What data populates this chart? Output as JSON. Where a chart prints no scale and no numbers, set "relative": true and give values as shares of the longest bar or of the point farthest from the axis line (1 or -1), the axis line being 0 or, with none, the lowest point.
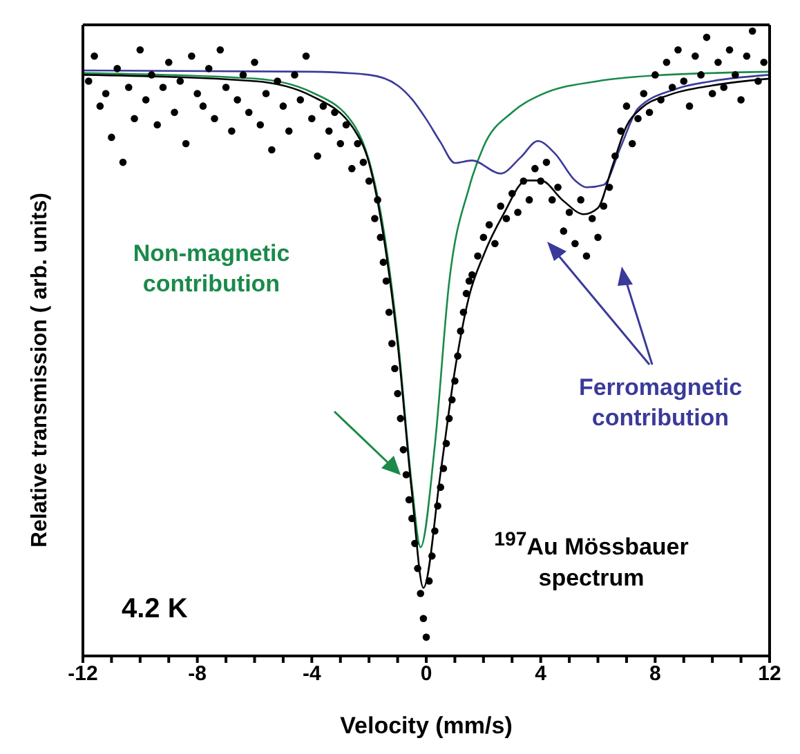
{
  "chart_data": {
    "type": "scatter",
    "relative": true,
    "xlabel": "Velocity (mm/s)",
    "ylabel": "Relative transmission ( arb. units)",
    "xlim": [
      -12,
      12
    ],
    "xticks": [
      -12,
      {
        "value": -11,
        "label": null
      },
      {
        "value": -10,
        "label": null
      },
      {
        "value": -9,
        "label": null
      },
      -8,
      {
        "value": -7,
        "label": null
      },
      {
        "value": -6,
        "label": null
      },
      {
        "value": -5,
        "label": null
      },
      -4,
      {
        "value": -3,
        "label": null
      },
      {
        "value": -2,
        "label": null
      },
      {
        "value": -1,
        "label": null
      },
      0,
      {
        "value": 1,
        "label": null
      },
      {
        "value": 2,
        "label": null
      },
      {
        "value": 3,
        "label": null
      },
      4,
      {
        "value": 5,
        "label": null
      },
      {
        "value": 6,
        "label": null
      },
      {
        "value": 7,
        "label": null
      },
      8,
      {
        "value": 9,
        "label": null
      },
      {
        "value": 10,
        "label": null
      },
      {
        "value": 11,
        "label": null
      },
      12
    ],
    "tick_labels": "x",
    "line_style": "solid",
    "annotations": [
      "4.2 K",
      "$^{197}$Au Mössbauer spectrum"
    ],
    "series": [
      {
        "color": "#000000",
        "marker": "circle",
        "x": [
          -11.8,
          -11.6,
          -11.4,
          -11.2,
          -11.0,
          -10.8,
          -10.6,
          -10.4,
          -10.2,
          -10.0,
          -9.8,
          -9.6,
          -9.4,
          -9.2,
          -9.0,
          -8.8,
          -8.6,
          -8.4,
          -8.2,
          -8.0,
          -7.8,
          -7.6,
          -7.4,
          -7.2,
          -7.0,
          -6.8,
          -6.6,
          -6.4,
          -6.2,
          -6.0,
          -5.8,
          -5.6,
          -5.4,
          -5.2,
          -5.0,
          -4.8,
          -4.6,
          -4.4,
          -4.2,
          -4.0,
          -3.8,
          -3.6,
          -3.4,
          -3.2,
          -3.0,
          -2.8,
          -2.6,
          -2.4,
          -2.2,
          -2.0,
          -1.8,
          -1.7,
          -1.6,
          -1.5,
          -1.4,
          -1.3,
          -1.2,
          -1.1,
          -1.0,
          -0.9,
          -0.8,
          -0.7,
          -0.6,
          -0.5,
          -0.4,
          -0.3,
          -0.2,
          -0.1,
          0.0,
          0.1,
          0.2,
          0.3,
          0.4,
          0.5,
          0.6,
          0.7,
          0.8,
          0.9,
          1.0,
          1.1,
          1.2,
          1.3,
          1.4,
          1.5,
          1.6,
          1.8,
          2.0,
          2.2,
          2.4,
          2.6,
          2.8,
          3.0,
          3.2,
          3.4,
          3.6,
          3.8,
          4.0,
          4.2,
          4.4,
          4.6,
          4.8,
          5.0,
          5.2,
          5.4,
          5.6,
          5.8,
          6.0,
          6.2,
          6.4,
          6.6,
          6.8,
          7.0,
          7.2,
          7.4,
          7.6,
          7.8,
          8.0,
          8.2,
          8.4,
          8.6,
          8.8,
          9.0,
          9.2,
          9.4,
          9.6,
          9.8,
          10.0,
          10.2,
          10.4,
          10.6,
          10.8,
          11.0,
          11.2,
          11.4,
          11.6,
          11.8
        ],
        "values": [
          0.92,
          0.96,
          0.88,
          0.9,
          0.83,
          0.94,
          0.79,
          0.91,
          0.86,
          0.97,
          0.89,
          0.93,
          0.85,
          0.91,
          0.95,
          0.87,
          0.92,
          0.82,
          0.96,
          0.9,
          0.88,
          0.94,
          0.86,
          0.97,
          0.91,
          0.84,
          0.89,
          0.93,
          0.87,
          0.95,
          0.85,
          0.9,
          0.81,
          0.92,
          0.88,
          0.84,
          0.93,
          0.89,
          0.96,
          0.86,
          0.8,
          0.88,
          0.84,
          0.87,
          0.82,
          0.85,
          0.78,
          0.82,
          0.79,
          0.76,
          0.7,
          0.73,
          0.67,
          0.63,
          0.6,
          0.55,
          0.5,
          0.46,
          0.42,
          0.38,
          0.33,
          0.29,
          0.25,
          0.22,
          0.18,
          0.14,
          0.1,
          0.06,
          0.03,
          0.12,
          0.16,
          0.2,
          0.24,
          0.27,
          0.3,
          0.34,
          0.38,
          0.41,
          0.44,
          0.48,
          0.52,
          0.55,
          0.58,
          0.6,
          0.61,
          0.64,
          0.67,
          0.69,
          0.66,
          0.72,
          0.7,
          0.74,
          0.71,
          0.76,
          0.73,
          0.78,
          0.76,
          0.79,
          0.73,
          0.75,
          0.68,
          0.71,
          0.66,
          0.73,
          0.64,
          0.7,
          0.67,
          0.72,
          0.75,
          0.8,
          0.84,
          0.88,
          0.82,
          0.86,
          0.9,
          0.87,
          0.93,
          0.89,
          0.95,
          0.91,
          0.97,
          0.92,
          0.88,
          0.96,
          0.93,
          0.99,
          0.9,
          0.95,
          0.91,
          0.97,
          0.93,
          0.89,
          0.96,
          1.0,
          0.92,
          0.95
        ]
      },
      {
        "type": "line",
        "name": "Non-magnetic contribution",
        "color": "#1a8a4a",
        "x": [
          -12,
          -6,
          -4,
          -2.5,
          -2,
          -1.5,
          -1,
          -0.5,
          -0.2,
          0.3,
          0.8,
          1.5,
          2,
          3,
          4,
          6,
          8,
          12
        ],
        "values": [
          0.933,
          0.924,
          0.902,
          0.848,
          0.793,
          0.685,
          0.511,
          0.272,
          0.174,
          0.337,
          0.598,
          0.75,
          0.815,
          0.87,
          0.898,
          0.92,
          0.929,
          0.935
        ]
      },
      {
        "type": "line",
        "name": "Ferromagnetic contribution",
        "color": "#3a3a9a",
        "x": [
          -12,
          -4,
          -2,
          -1,
          -0.5,
          0,
          0.5,
          1,
          1.6,
          2.6,
          3.3,
          3.9,
          4.5,
          5.2,
          5.6,
          6.2,
          6.8,
          7.4,
          8.7,
          10,
          12
        ],
        "values": [
          0.937,
          0.935,
          0.93,
          0.913,
          0.891,
          0.859,
          0.822,
          0.789,
          0.793,
          0.772,
          0.798,
          0.824,
          0.804,
          0.761,
          0.75,
          0.754,
          0.815,
          0.876,
          0.907,
          0.92,
          0.93
        ]
      },
      {
        "type": "line",
        "color": "#000000",
        "x": [
          -12,
          -6,
          -4,
          -2.5,
          -2,
          -1.5,
          -1,
          -0.5,
          -0.1,
          0.5,
          1,
          1.5,
          2,
          2.7,
          3.5,
          4,
          4.8,
          5.5,
          6,
          6.5,
          7,
          7.5,
          8.5,
          10,
          12
        ],
        "values": [
          0.93,
          0.92,
          0.896,
          0.841,
          0.789,
          0.674,
          0.5,
          0.261,
          0.109,
          0.293,
          0.457,
          0.576,
          0.641,
          0.707,
          0.761,
          0.761,
          0.728,
          0.707,
          0.717,
          0.783,
          0.848,
          0.876,
          0.898,
          0.913,
          0.924
        ]
      }
    ]
  }
}
